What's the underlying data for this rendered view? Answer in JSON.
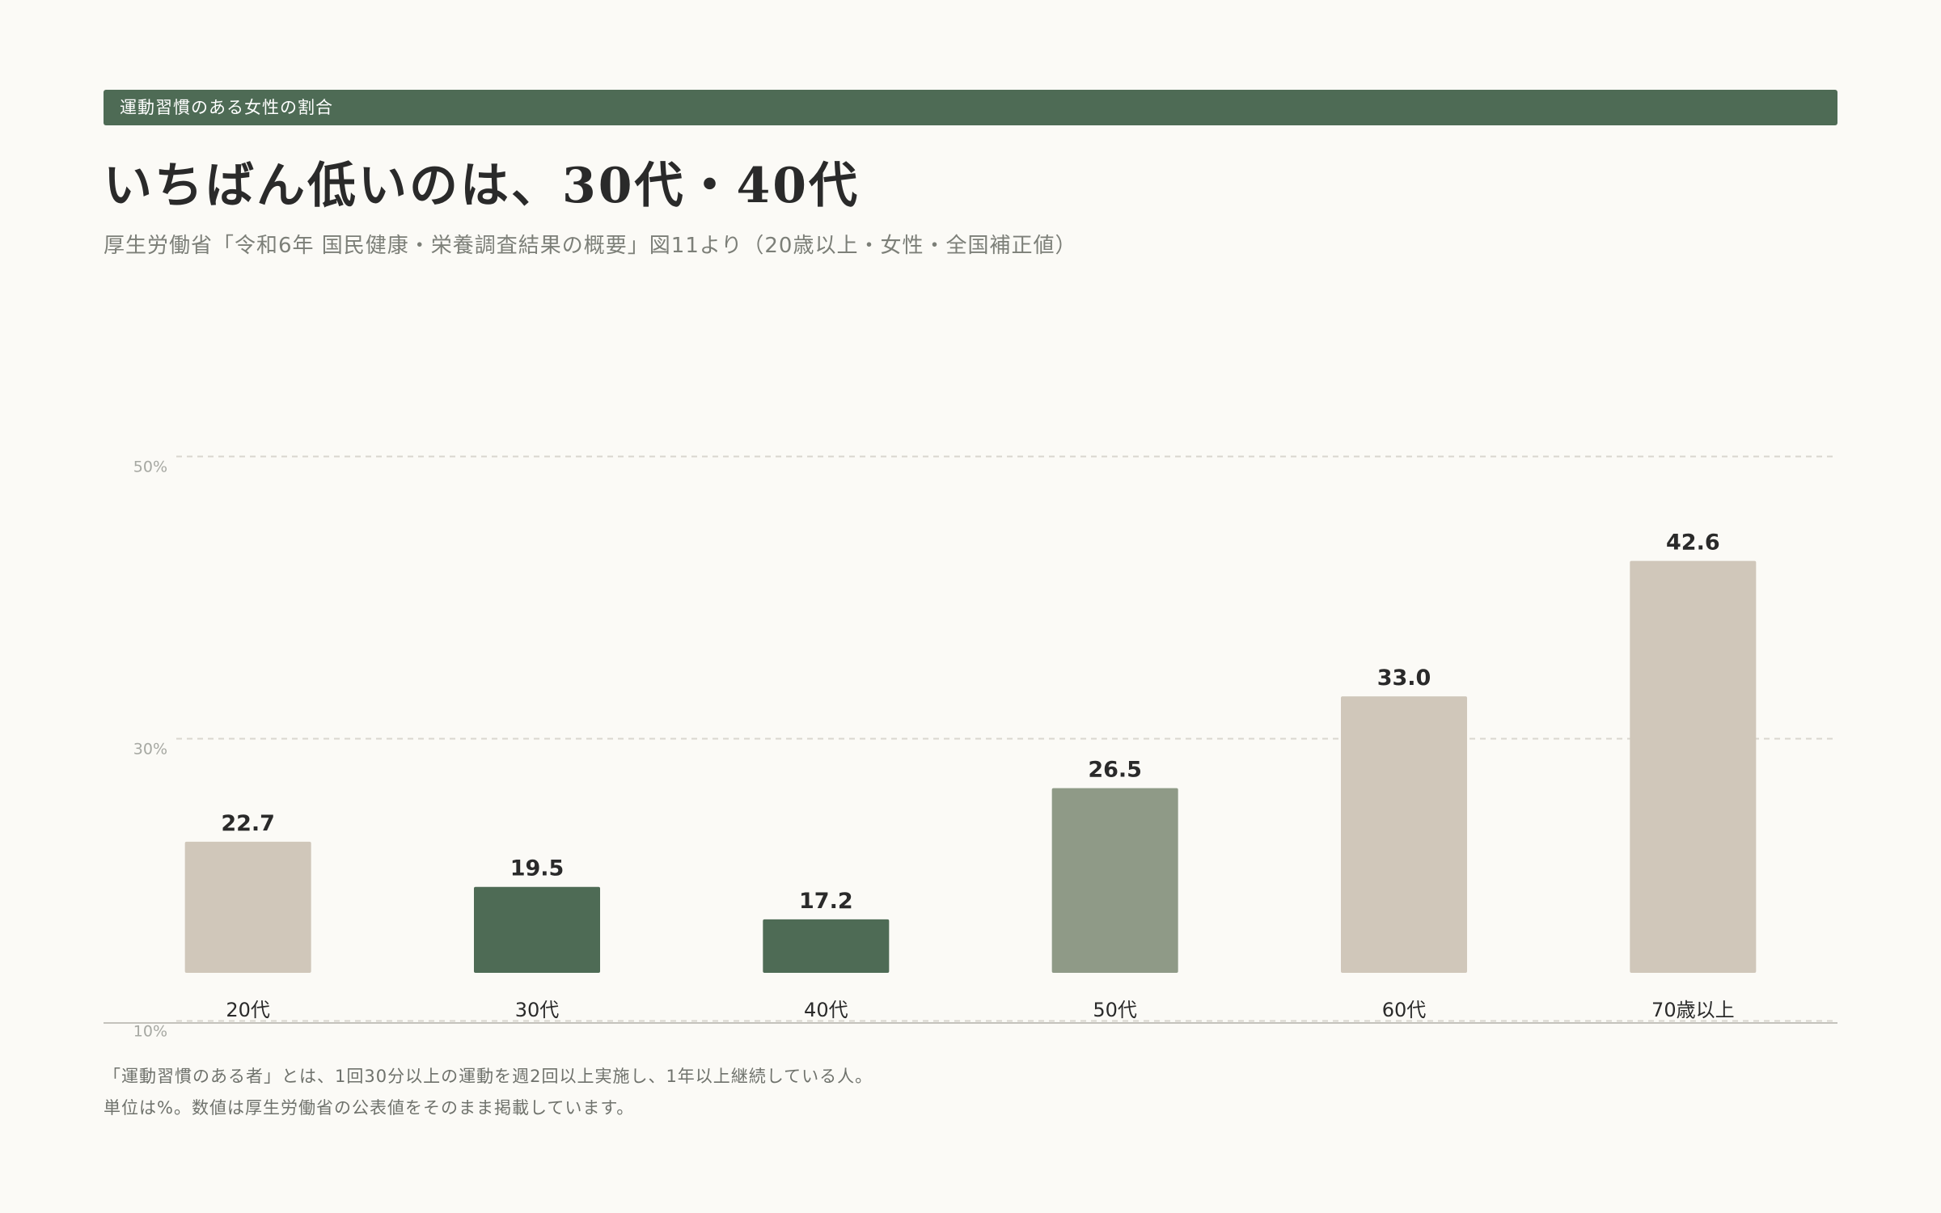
{
  "header": {
    "label": "運動習慣のある女性の割合",
    "headline": "いちばん低いのは、30代・40代",
    "source": "厚生労働省「令和6年 国民健康・栄養調査結果の概要」図11より（20歳以上・女性・全国補正値）"
  },
  "notes": {
    "line1": "「運動習慣のある者」とは、1回30分以上の運動を週2回以上実施し、1年以上継続している人。",
    "line2": "単位は%。数値は厚生労働省の公表値をそのまま掲載しています。"
  },
  "colors": {
    "background": "#fbfaf6",
    "accent": "#4e6b55",
    "bar_default": "#d0c7ba",
    "bar_lowest": "#4e6b55",
    "bar_mid": "#8f9a87",
    "grid": "#d9d6cf",
    "axis": "#c4c2bc"
  },
  "chart_data": {
    "type": "bar",
    "categories": [
      "20代",
      "30代",
      "40代",
      "50代",
      "60代",
      "70歳以上"
    ],
    "values": [
      22.7,
      19.5,
      17.2,
      26.5,
      33.0,
      42.6
    ],
    "value_labels": [
      "22.7",
      "19.5",
      "17.2",
      "26.5",
      "33.0",
      "42.6"
    ],
    "bar_colors": [
      "#d0c7ba",
      "#4e6b55",
      "#4e6b55",
      "#8f9a87",
      "#d0c7ba",
      "#d0c7ba"
    ],
    "ylim": [
      0,
      50
    ],
    "yticks": [
      10,
      30,
      50
    ],
    "ytick_labels": [
      "10%",
      "30%",
      "50%"
    ],
    "unit": "%",
    "grid": true,
    "legend": "none",
    "xlabel": "",
    "ylabel": ""
  }
}
